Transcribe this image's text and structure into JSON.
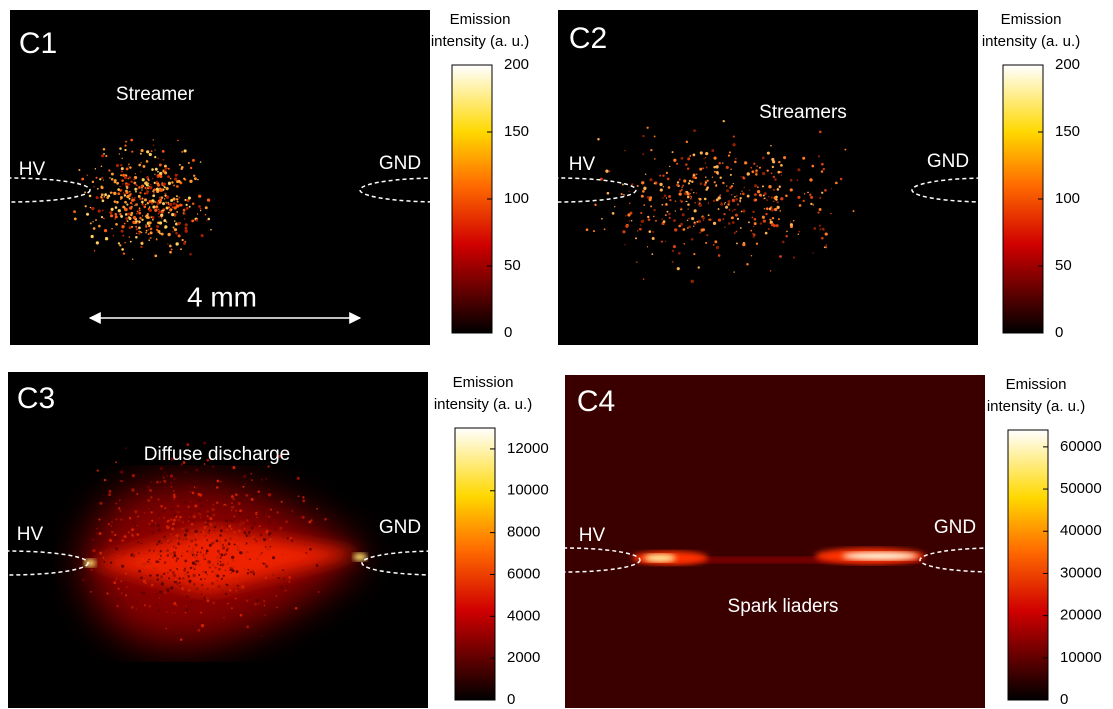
{
  "panels": [
    {
      "label": "C1",
      "caption": "Streamer",
      "hv": "HV",
      "gnd": "GND",
      "scale": "4 mm",
      "colorbar": {
        "line1": "Emission",
        "line2": "intensity (a. u.)",
        "lim": [
          0,
          200
        ],
        "ticks": [
          0,
          50,
          100,
          150,
          200
        ]
      }
    },
    {
      "label": "C2",
      "caption": "Streamers",
      "hv": "HV",
      "gnd": "GND",
      "colorbar": {
        "line1": "Emission",
        "line2": "intensity (a. u.)",
        "lim": [
          0,
          200
        ],
        "ticks": [
          0,
          50,
          100,
          150,
          200
        ]
      }
    },
    {
      "label": "C3",
      "caption": "Diffuse discharge",
      "hv": "HV",
      "gnd": "GND",
      "colorbar": {
        "line1": "Emission",
        "line2": "intensity (a. u.)",
        "lim": [
          0,
          13000
        ],
        "ticks": [
          0,
          2000,
          4000,
          6000,
          8000,
          10000,
          12000
        ]
      }
    },
    {
      "label": "C4",
      "caption": "Spark liaders",
      "hv": "HV",
      "gnd": "GND",
      "colorbar": {
        "line1": "Emission",
        "line2": "intensity (a. u.)",
        "lim": [
          0,
          64000
        ],
        "ticks": [
          0,
          10000,
          20000,
          30000,
          40000,
          50000,
          60000
        ]
      }
    }
  ]
}
